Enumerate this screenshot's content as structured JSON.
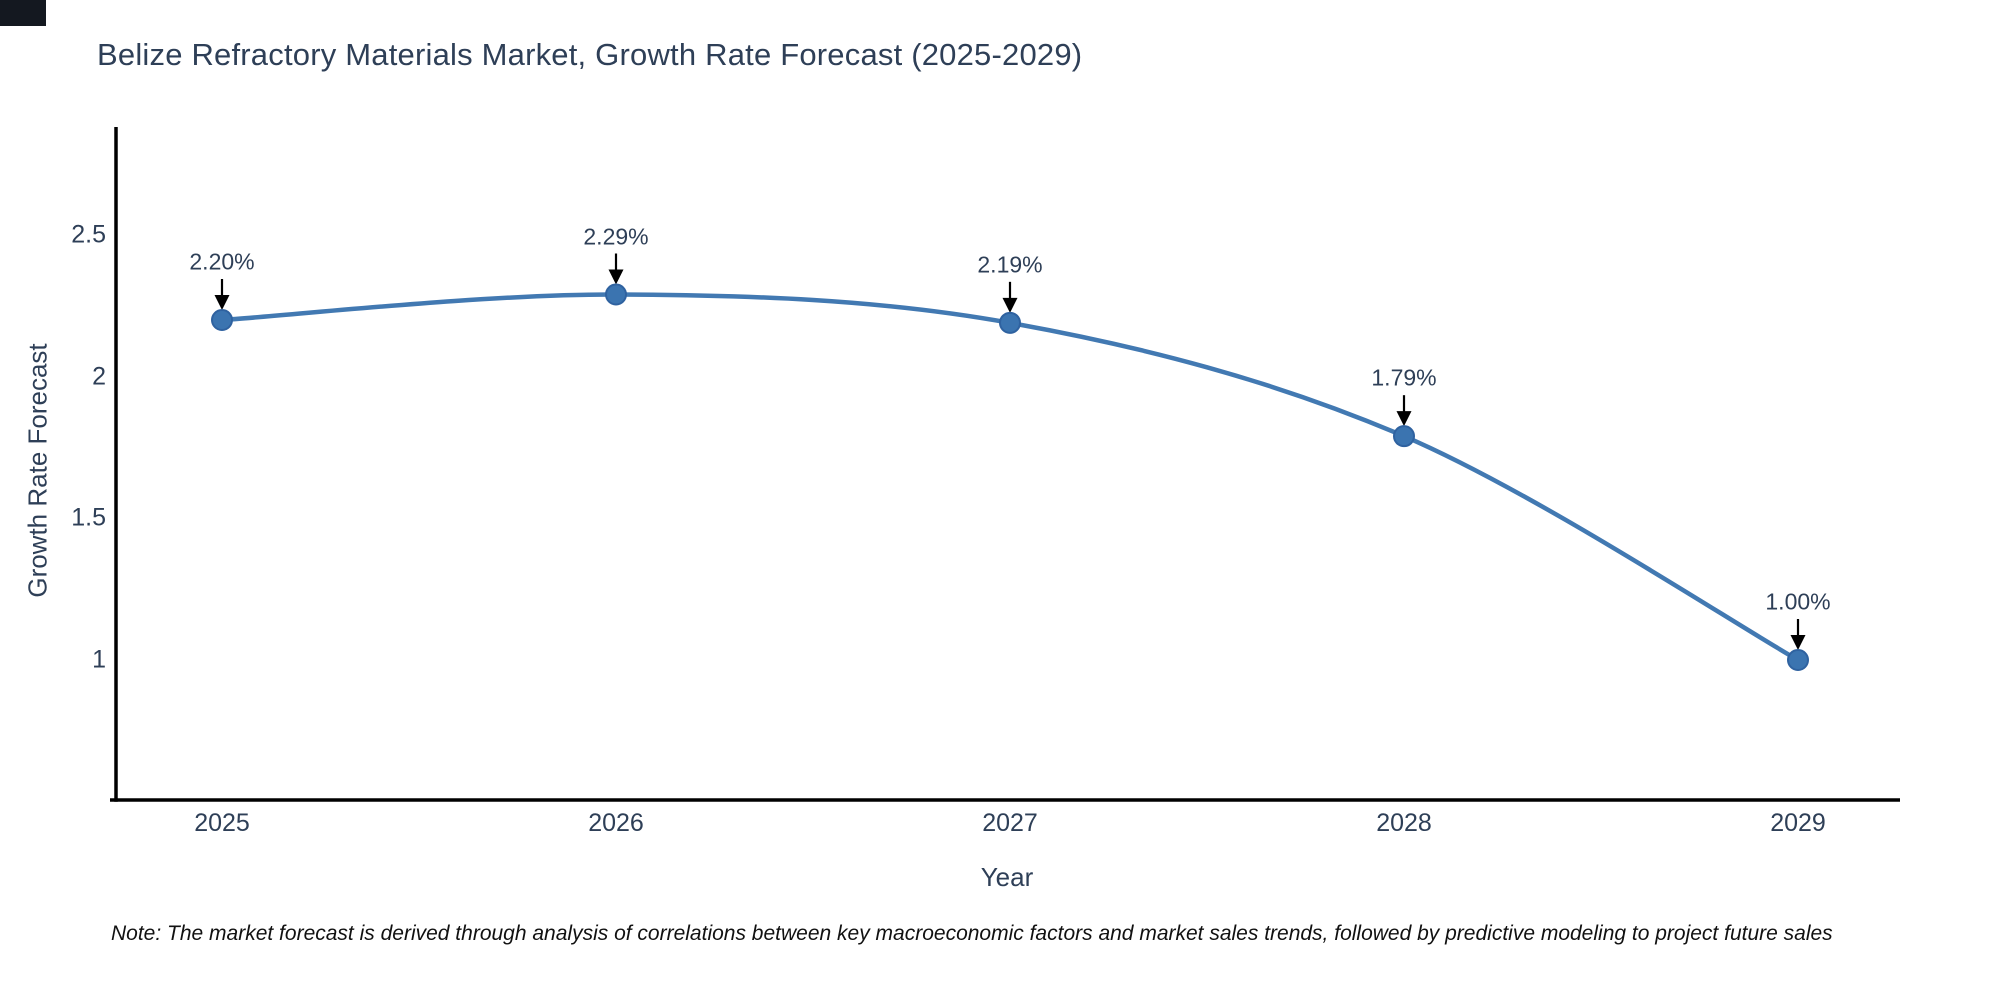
{
  "title": "Belize Refractory Materials Market, Growth Rate Forecast (2025-2029)",
  "note": "Note: The market forecast is derived through analysis of correlations between key macroeconomic factors and market sales trends, followed by predictive modeling to project future sales",
  "corner_box_color": "#141820",
  "colors": {
    "text": "#2e3f57",
    "axis_line": "#000000",
    "note_text": "#111111",
    "line": "#4279b2",
    "marker_fill": "#3b74b0",
    "marker_stroke": "#2f62a0",
    "arrow": "#000000"
  },
  "chart_data": {
    "type": "line",
    "title": "Belize Refractory Materials Market, Growth Rate Forecast (2025-2029)",
    "xlabel": "Year",
    "ylabel": "Growth Rate Forecast",
    "x": [
      2025,
      2026,
      2027,
      2028,
      2029
    ],
    "values": [
      2.2,
      2.29,
      2.19,
      1.79,
      1.0
    ],
    "point_labels": [
      "2.20%",
      "2.29%",
      "2.19%",
      "1.79%",
      "1.00%"
    ],
    "x_tick_labels": [
      "2025",
      "2026",
      "2027",
      "2028",
      "2029"
    ],
    "y_tick_labels": [
      "2.5",
      "2",
      "1.5",
      "1"
    ],
    "y_tick_values": [
      2.5,
      2.0,
      1.5,
      1.0
    ],
    "ylim": [
      0.5,
      2.87
    ],
    "grid": false,
    "legend_position": "none",
    "line_style": "spline",
    "annotations_have_arrows": true
  }
}
